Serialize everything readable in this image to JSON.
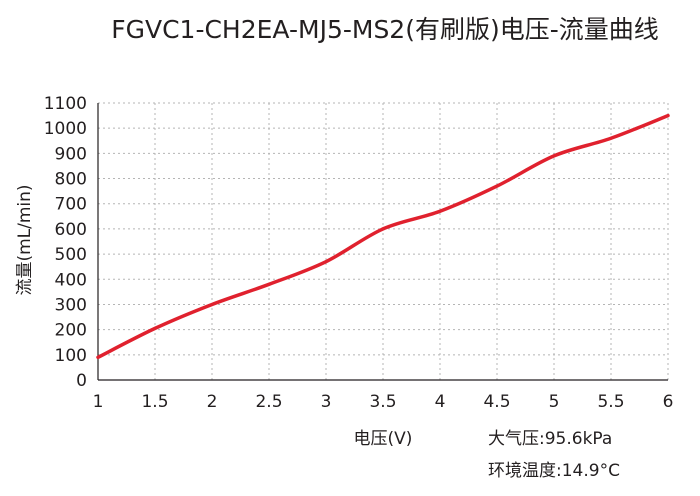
{
  "chart_data": {
    "type": "line",
    "title": "FGVC1-CH2EA-MJ5-MS2(有刷版)电压-流量曲线",
    "xlabel": "电压(V)",
    "ylabel": "流量(mL/min)",
    "xlim": [
      1,
      6
    ],
    "ylim": [
      0,
      1100
    ],
    "xticks": [
      "1",
      "1.5",
      "2",
      "2.5",
      "3",
      "3.5",
      "4",
      "4.5",
      "5",
      "5.5",
      "6"
    ],
    "yticks": [
      "0",
      "100",
      "200",
      "300",
      "400",
      "500",
      "600",
      "700",
      "800",
      "900",
      "1000",
      "1100"
    ],
    "grid": "dotted",
    "series": [
      {
        "color": "#e0212e",
        "x": [
          1,
          1.5,
          2,
          2.5,
          3,
          3.5,
          4,
          4.5,
          5,
          5.5,
          6
        ],
        "y": [
          90,
          205,
          300,
          380,
          470,
          600,
          670,
          770,
          890,
          960,
          1050
        ]
      }
    ],
    "annotations": [
      "大气压:95.6kPa",
      "环境温度:14.9°C"
    ]
  }
}
